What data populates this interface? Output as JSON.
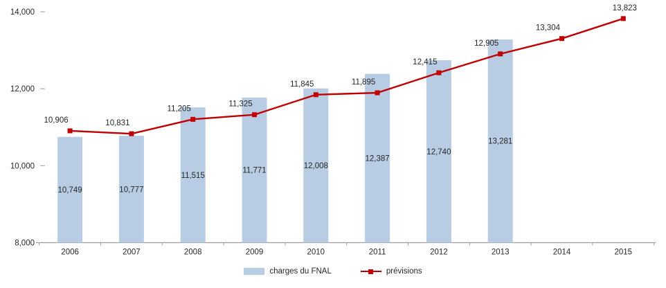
{
  "chart_data": {
    "type": "bar",
    "subtype": "combo-bar-line",
    "categories": [
      "2006",
      "2007",
      "2008",
      "2009",
      "2010",
      "2011",
      "2012",
      "2013",
      "2014",
      "2015"
    ],
    "series": [
      {
        "name": "charges du FNAL",
        "type": "bar",
        "color": "#b8cce4",
        "values": [
          10749,
          10777,
          11515,
          11771,
          12008,
          12387,
          12740,
          13281,
          null,
          null
        ],
        "labels": [
          "10,749",
          "10,777",
          "11,515",
          "11,771",
          "12,008",
          "12,387",
          "12,740",
          "13,281",
          null,
          null
        ]
      },
      {
        "name": "prévisions",
        "type": "line",
        "color": "#c00000",
        "marker": "square",
        "values": [
          10906,
          10831,
          11205,
          11325,
          11845,
          11895,
          12415,
          12905,
          13304,
          13823
        ],
        "labels": [
          "10,906",
          "10,831",
          "11,205",
          "11,325",
          "11,845",
          "11,895",
          "12,415",
          "12,905",
          "13,304",
          "13,823"
        ]
      }
    ],
    "title": "",
    "xlabel": "",
    "ylabel": "",
    "ylim": [
      8000,
      14000
    ],
    "yticks": [
      8000,
      10000,
      12000,
      14000
    ],
    "ytick_labels": [
      "8,000",
      "10,000",
      "12,000",
      "14,000"
    ],
    "grid": false,
    "legend_position": "bottom",
    "data_labels": true
  },
  "colors": {
    "bar": "#b8cce4",
    "line": "#c00000",
    "axis": "#9d9d9d",
    "text": "#262626",
    "background": "#ffffff"
  }
}
